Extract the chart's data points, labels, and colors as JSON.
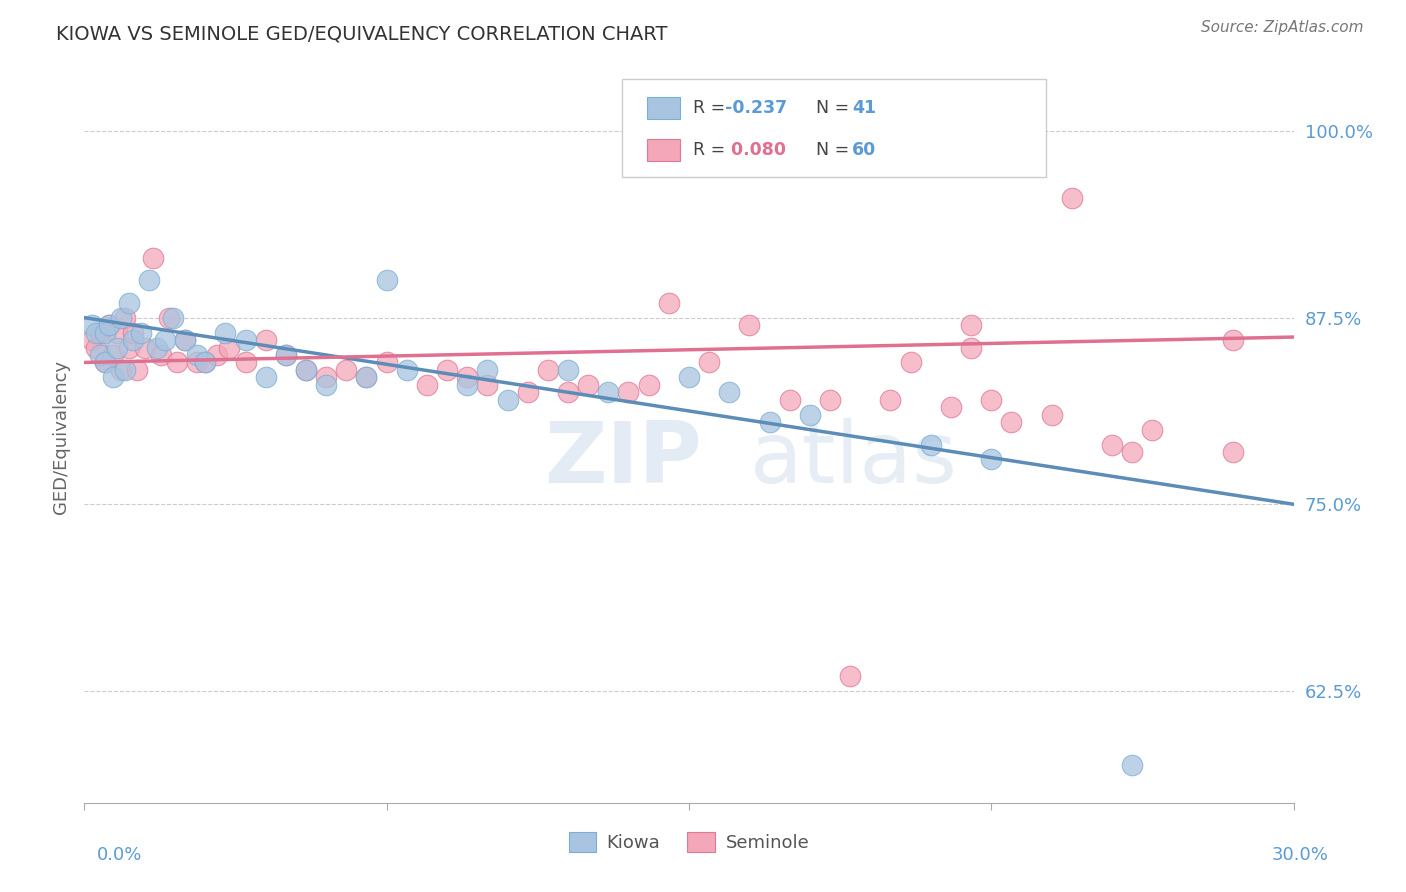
{
  "title": "KIOWA VS SEMINOLE GED/EQUIVALENCY CORRELATION CHART",
  "source": "Source: ZipAtlas.com",
  "ylabel": "GED/Equivalency",
  "yticks": [
    62.5,
    75.0,
    87.5,
    100.0
  ],
  "xmin": 0.0,
  "xmax": 30.0,
  "ymin": 55.0,
  "ymax": 104.0,
  "kiowa_color": "#a8c4e0",
  "kiowa_edge_color": "#7aafd4",
  "seminole_color": "#f4a7b9",
  "seminole_edge_color": "#e07898",
  "kiowa_line_color": "#5b8db8",
  "seminole_line_color": "#e07090",
  "title_color": "#333333",
  "axis_label_color": "#5b9bd5",
  "background_color": "#ffffff",
  "kiowa_trend_x0": 0.0,
  "kiowa_trend_y0": 87.5,
  "kiowa_trend_x1": 30.0,
  "kiowa_trend_y1": 75.0,
  "seminole_trend_x0": 0.0,
  "seminole_trend_y0": 84.5,
  "seminole_trend_x1": 30.0,
  "seminole_trend_y1": 86.2,
  "kiowa_x": [
    0.2,
    0.3,
    0.4,
    0.5,
    0.5,
    0.6,
    0.7,
    0.8,
    0.9,
    1.0,
    1.1,
    1.2,
    1.4,
    1.6,
    1.8,
    2.0,
    2.2,
    2.5,
    2.8,
    3.0,
    3.5,
    4.0,
    4.5,
    5.0,
    5.5,
    6.0,
    7.0,
    7.5,
    8.0,
    9.5,
    10.0,
    10.5,
    12.0,
    13.0,
    15.0,
    16.0,
    17.0,
    18.0,
    21.0,
    22.5,
    26.0
  ],
  "kiowa_y": [
    87.0,
    86.5,
    85.0,
    86.5,
    84.5,
    87.0,
    83.5,
    85.5,
    87.5,
    84.0,
    88.5,
    86.0,
    86.5,
    90.0,
    85.5,
    86.0,
    87.5,
    86.0,
    85.0,
    84.5,
    86.5,
    86.0,
    83.5,
    85.0,
    84.0,
    83.0,
    83.5,
    90.0,
    84.0,
    83.0,
    84.0,
    82.0,
    84.0,
    82.5,
    83.5,
    82.5,
    80.5,
    81.0,
    79.0,
    78.0,
    57.5
  ],
  "seminole_x": [
    0.2,
    0.3,
    0.4,
    0.5,
    0.6,
    0.7,
    0.8,
    0.9,
    1.0,
    1.1,
    1.2,
    1.3,
    1.5,
    1.7,
    1.9,
    2.1,
    2.3,
    2.5,
    2.8,
    3.0,
    3.3,
    3.6,
    4.0,
    4.5,
    5.0,
    5.5,
    6.0,
    6.5,
    7.0,
    7.5,
    8.5,
    9.0,
    9.5,
    10.0,
    11.0,
    11.5,
    12.0,
    12.5,
    13.5,
    14.0,
    15.5,
    17.5,
    18.5,
    19.0,
    20.0,
    21.5,
    22.0,
    22.5,
    23.0,
    24.0,
    25.5,
    26.0,
    28.5,
    28.5,
    14.5,
    16.5,
    20.5,
    22.0,
    26.5,
    24.5
  ],
  "seminole_y": [
    86.0,
    85.5,
    86.5,
    84.5,
    87.0,
    85.0,
    86.5,
    84.0,
    87.5,
    85.5,
    86.5,
    84.0,
    85.5,
    91.5,
    85.0,
    87.5,
    84.5,
    86.0,
    84.5,
    84.5,
    85.0,
    85.5,
    84.5,
    86.0,
    85.0,
    84.0,
    83.5,
    84.0,
    83.5,
    84.5,
    83.0,
    84.0,
    83.5,
    83.0,
    82.5,
    84.0,
    82.5,
    83.0,
    82.5,
    83.0,
    84.5,
    82.0,
    82.0,
    63.5,
    82.0,
    81.5,
    87.0,
    82.0,
    80.5,
    81.0,
    79.0,
    78.5,
    78.5,
    86.0,
    88.5,
    87.0,
    84.5,
    85.5,
    80.0,
    95.5
  ]
}
